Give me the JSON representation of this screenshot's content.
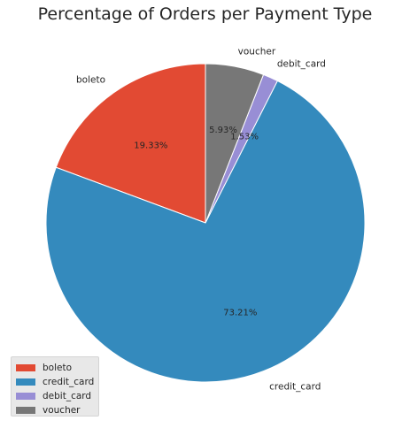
{
  "chart_data": {
    "type": "pie",
    "title": "Percentage of Orders per Payment Type",
    "categories": [
      "boleto",
      "credit_card",
      "debit_card",
      "voucher"
    ],
    "values": [
      19.33,
      73.21,
      1.53,
      5.93
    ],
    "value_labels": [
      "19.33%",
      "73.21%",
      "1.53%",
      "5.93%"
    ],
    "colors": [
      "#E24A33",
      "#348ABD",
      "#988ED5",
      "#777777"
    ],
    "start_angle_deg": 90,
    "direction": "counterclockwise",
    "legend_placement": "lower-left"
  }
}
